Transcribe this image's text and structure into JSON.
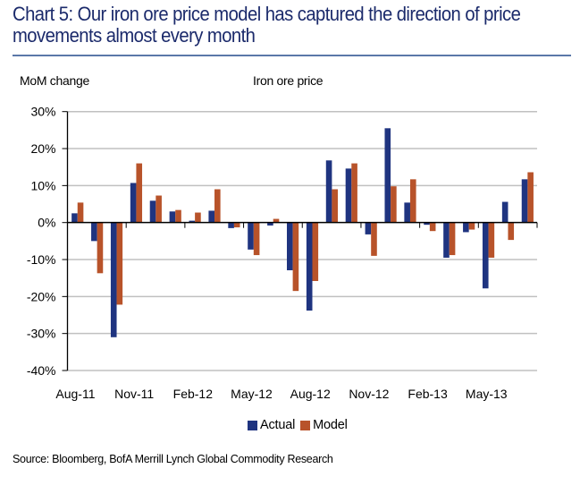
{
  "header": {
    "title": "Chart 5: Our iron ore price model has captured the direction of price movements almost every month",
    "rule_color": "#5b78a8"
  },
  "subheaders": {
    "left": "MoM change",
    "right": "Iron ore price"
  },
  "source": "Source: Bloomberg, BofA Merrill Lynch Global Commodity Research",
  "chart_data": {
    "type": "bar",
    "title": "Chart 5: Our iron ore price model has captured the direction of price movements almost every month",
    "xlabel": "",
    "ylabel": "MoM change",
    "subtitle": "Iron ore price",
    "categories": [
      "Aug-11",
      "Sep-11",
      "Oct-11",
      "Nov-11",
      "Dec-11",
      "Jan-12",
      "Feb-12",
      "Mar-12",
      "Apr-12",
      "May-12",
      "Jun-12",
      "Jul-12",
      "Aug-12",
      "Sep-12",
      "Oct-12",
      "Nov-12",
      "Dec-12",
      "Jan-13",
      "Feb-13",
      "Mar-13",
      "Apr-13",
      "May-13",
      "Jun-13",
      "Jul-13"
    ],
    "x_tick_labels": [
      "Aug-11",
      "Nov-11",
      "Feb-12",
      "May-12",
      "Aug-12",
      "Nov-12",
      "Feb-13",
      "May-13"
    ],
    "series": [
      {
        "name": "Actual",
        "color": "#1f3480",
        "values": [
          2.5,
          -5.0,
          -31.0,
          10.7,
          5.9,
          3.0,
          0.5,
          3.2,
          -1.5,
          -7.3,
          -0.8,
          -12.9,
          -23.8,
          16.8,
          14.6,
          -3.2,
          25.5,
          5.4,
          -0.6,
          -9.5,
          -2.6,
          -17.8,
          5.6,
          11.7
        ]
      },
      {
        "name": "Model",
        "color": "#b8532a",
        "values": [
          5.4,
          -13.7,
          -22.2,
          16.0,
          7.3,
          3.4,
          2.7,
          9.0,
          -1.3,
          -8.8,
          1.0,
          -18.5,
          -15.8,
          9.0,
          16.0,
          -9.0,
          9.8,
          11.7,
          -2.3,
          -8.8,
          -1.9,
          -9.5,
          -4.7,
          13.6
        ]
      }
    ],
    "y_tick_labels": [
      "30%",
      "20%",
      "10%",
      "0%",
      "-10%",
      "-20%",
      "-30%",
      "-40%"
    ],
    "y_ticks": [
      30,
      20,
      10,
      0,
      -10,
      -20,
      -30,
      -40
    ],
    "ylim": [
      -40,
      30
    ],
    "units": "%",
    "grid": true,
    "legend": {
      "placement": "bottom-center",
      "entries": [
        "Actual",
        "Model"
      ]
    }
  }
}
